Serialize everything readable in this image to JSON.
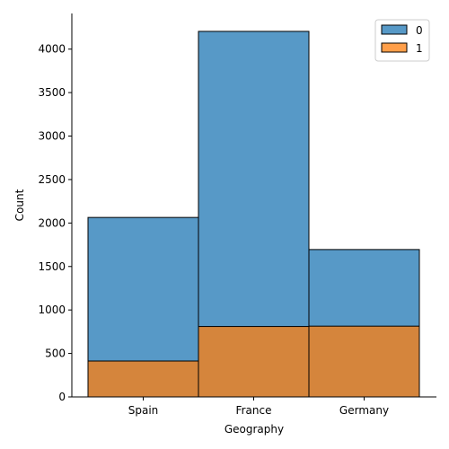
{
  "chart_data": {
    "type": "bar",
    "stacked": false,
    "overlapping": true,
    "categories": [
      "Spain",
      "France",
      "Germany"
    ],
    "series": [
      {
        "name": "0",
        "values": [
          2064,
          4204,
          1695
        ],
        "color": "#1f77b4"
      },
      {
        "name": "1",
        "values": [
          413,
          810,
          814
        ],
        "color": "#ff7f0e"
      }
    ],
    "title": "",
    "xlabel": "Geography",
    "ylabel": "Count",
    "ylim": [
      0,
      4410
    ],
    "yticks": [
      0,
      500,
      1000,
      1500,
      2000,
      2500,
      3000,
      3500,
      4000
    ],
    "grid": false,
    "legend": "top-right"
  }
}
